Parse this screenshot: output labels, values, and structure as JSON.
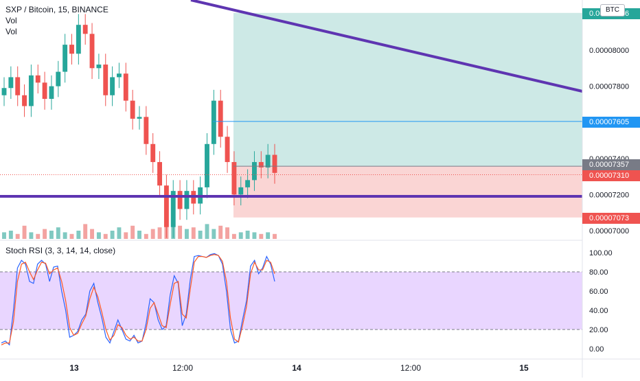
{
  "header": {
    "symbol_line": "SXP / Bitcoin, 15, BINANCE",
    "indicator_1": "Vol",
    "indicator_2": "Vol",
    "currency_badge": "BTC"
  },
  "oscillator": {
    "title": "Stoch RSI (3, 3, 14, 14, close)"
  },
  "colors": {
    "up": "#26a69a",
    "down": "#ef5350",
    "trendline": "#5e35b1",
    "profit_zone": "#cde9e6",
    "loss_zone": "#fad5d4",
    "stoch_k": "#2962ff",
    "stoch_d": "#ff5722",
    "stoch_band": "#e9d6ff"
  },
  "chart_data": [
    {
      "type": "candlestick",
      "title": "SXP / Bitcoin, 15, BINANCE",
      "price_axis_ticks": [
        "0.00008000",
        "0.00007800",
        "0.00007400",
        "0.00007200",
        "0.00007000"
      ],
      "time_axis_ticks": [
        "13",
        "12:00",
        "14",
        "12:00",
        "15"
      ],
      "price_tags": [
        {
          "label": "0.00008206",
          "kind": "target"
        },
        {
          "label": "0.00007605",
          "kind": "entry_high"
        },
        {
          "label": "0.00007357",
          "kind": "entry"
        },
        {
          "label": "0.00007310",
          "kind": "last_price"
        },
        {
          "label": "0.00007073",
          "kind": "stop"
        }
      ],
      "levels": {
        "target": 8.206e-05,
        "high_line": 7.605e-05,
        "entry": 7.357e-05,
        "last": 7.31e-05,
        "stop": 7.073e-05,
        "support": 7.19e-05
      },
      "close_series": [
        7.79e-05,
        7.85e-05,
        7.75e-05,
        7.69e-05,
        7.86e-05,
        7.82e-05,
        7.73e-05,
        7.8e-05,
        7.88e-05,
        8.03e-05,
        7.98e-05,
        8.14e-05,
        8.09e-05,
        7.9e-05,
        7.92e-05,
        7.75e-05,
        7.85e-05,
        7.87e-05,
        7.72e-05,
        7.62e-05,
        7.63e-05,
        7.48e-05,
        7.38e-05,
        7.25e-05,
        7.02e-05,
        7.22e-05,
        7.12e-05,
        7.22e-05,
        7.15e-05,
        7.24e-05,
        7.48e-05,
        7.72e-05,
        7.52e-05,
        7.38e-05,
        7.2e-05,
        7.24e-05,
        7.28e-05,
        7.38e-05,
        7.35e-05,
        7.42e-05,
        7.32e-05
      ],
      "volume": [
        4,
        5,
        3,
        8,
        4,
        3,
        6,
        5,
        7,
        4,
        3,
        5,
        9,
        6,
        4,
        3,
        5,
        7,
        4,
        8,
        5,
        3,
        6,
        7,
        9,
        12,
        8,
        6,
        7,
        5,
        9,
        6,
        8,
        7,
        3,
        4,
        5,
        4,
        3,
        4,
        3
      ],
      "support_line": 7.19e-05
    },
    {
      "type": "line",
      "title": "Stoch RSI (3, 3, 14, 14, close)",
      "y_ticks": [
        "100.00",
        "80.00",
        "60.00",
        "40.00",
        "20.00",
        "0.00"
      ],
      "ylim": [
        0,
        100
      ],
      "bands": [
        20,
        80
      ],
      "series": [
        {
          "values": [
            6,
            8,
            4,
            40,
            84,
            92,
            88,
            70,
            68,
            88,
            92,
            88,
            70,
            85,
            86,
            60,
            40,
            12,
            14,
            18,
            30,
            36,
            60,
            68,
            48,
            32,
            12,
            6,
            18,
            30,
            20,
            10,
            8,
            14,
            6,
            8,
            26,
            52,
            48,
            30,
            20,
            24,
            56,
            76,
            68,
            24,
            36,
            72,
            96,
            97,
            96,
            95,
            98,
            99,
            97,
            88,
            60,
            20,
            6,
            8,
            30,
            50,
            86,
            92,
            78,
            84,
            96,
            88,
            70
          ]
        },
        {
          "values": [
            4,
            6,
            6,
            28,
            70,
            88,
            90,
            80,
            72,
            82,
            90,
            89,
            78,
            82,
            84,
            70,
            50,
            22,
            14,
            16,
            26,
            34,
            52,
            64,
            54,
            38,
            20,
            9,
            14,
            25,
            22,
            14,
            10,
            12,
            8,
            8,
            20,
            42,
            48,
            36,
            24,
            22,
            46,
            68,
            70,
            36,
            32,
            62,
            90,
            96,
            96,
            95,
            97,
            98,
            97,
            91,
            70,
            32,
            10,
            7,
            24,
            44,
            78,
            90,
            82,
            82,
            92,
            90,
            78
          ]
        }
      ]
    }
  ]
}
